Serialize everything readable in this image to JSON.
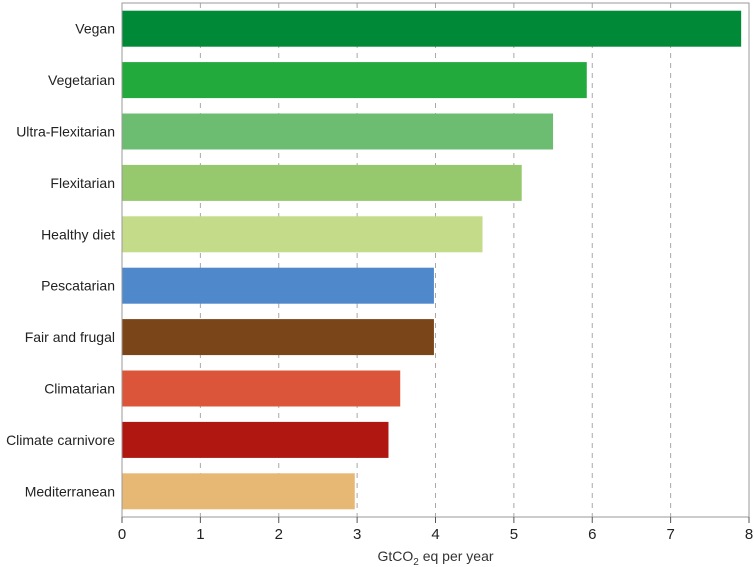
{
  "chart_data": {
    "type": "bar",
    "orientation": "horizontal",
    "categories": [
      "Vegan",
      "Vegetarian",
      "Ultra-Flexitarian",
      "Flexitarian",
      "Healthy diet",
      "Pescatarian",
      "Fair and frugal",
      "Climatarian",
      "Climate carnivore",
      "Mediterranean"
    ],
    "values": [
      7.9,
      5.93,
      5.5,
      5.1,
      4.6,
      3.98,
      3.98,
      3.55,
      3.4,
      2.97
    ],
    "colors": [
      "#008a37",
      "#22aa3c",
      "#6cbd72",
      "#96c86e",
      "#c4dc8a",
      "#5089cb",
      "#7a4519",
      "#db553b",
      "#af1710",
      "#e7b873"
    ],
    "xlabel": "GtCO2 eq per year",
    "xlabel_parts": {
      "pre": "GtCO",
      "sub": "2",
      "post": " eq per year"
    },
    "xlim": [
      0,
      8
    ],
    "xticks": [
      "0",
      "1",
      "2",
      "3",
      "4",
      "5",
      "6",
      "7",
      "8"
    ],
    "grid": "vertical dashed"
  }
}
